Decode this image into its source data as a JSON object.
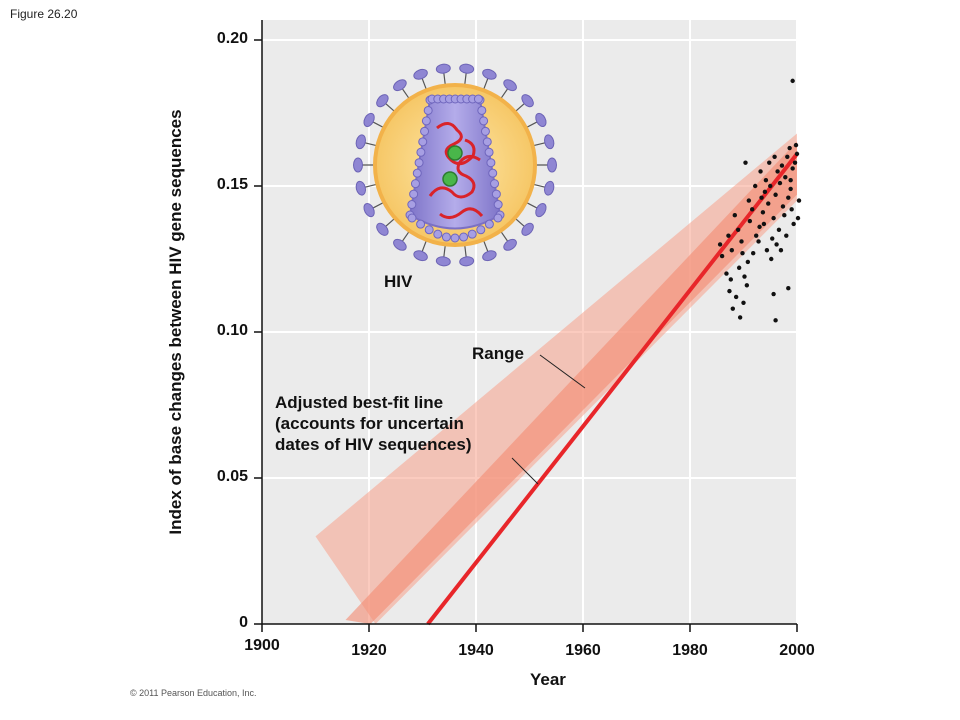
{
  "figure_label": "Figure 26.20",
  "copyright": "© 2011 Pearson Education, Inc.",
  "colors": {
    "plot_background": "#ebebeb",
    "best_fit_line": "#e8262a",
    "range_band": "#f7a08a",
    "points": "#111111",
    "virus_envelope": "#f6d27a",
    "virus_capsid": "#9b90d8",
    "virus_rna": "#d9232a",
    "virus_spikes": "#8f86d3"
  },
  "annotations": {
    "virus_label": "HIV",
    "range_label": "Range",
    "bestfit_line1": "Adjusted best-fit line",
    "bestfit_line2": "(accounts for uncertain",
    "bestfit_line3": "dates of HIV sequences)"
  },
  "chart_data": {
    "type": "scatter",
    "title": "",
    "xlabel": "Year",
    "ylabel": "Index of base changes between HIV gene sequences",
    "xlim": [
      1900,
      2000
    ],
    "ylim": [
      0,
      0.2
    ],
    "x_ticks": [
      "1900",
      "1920",
      "1940",
      "1960",
      "1980",
      "2000"
    ],
    "y_ticks": [
      "0",
      "0.05",
      "0.10",
      "0.15",
      "0.20"
    ],
    "grid": true,
    "best_fit_line": {
      "x": [
        1931,
        2000
      ],
      "y": [
        0,
        0.161
      ]
    },
    "range_band": {
      "x": [
        1910,
        2000
      ],
      "y_lower": [
        0,
        0.145
      ],
      "y_upper": [
        0.03,
        0.168
      ]
    },
    "points": [
      [
        1986,
        0.13
      ],
      [
        1986,
        0.126
      ],
      [
        1987,
        0.114
      ],
      [
        1987,
        0.12
      ],
      [
        1987,
        0.133
      ],
      [
        1988,
        0.118
      ],
      [
        1988,
        0.108
      ],
      [
        1988,
        0.14
      ],
      [
        1988,
        0.128
      ],
      [
        1989,
        0.122
      ],
      [
        1989,
        0.112
      ],
      [
        1989,
        0.135
      ],
      [
        1989,
        0.105
      ],
      [
        1990,
        0.127
      ],
      [
        1990,
        0.119
      ],
      [
        1990,
        0.131
      ],
      [
        1990,
        0.11
      ],
      [
        1990,
        0.158
      ],
      [
        1991,
        0.124
      ],
      [
        1991,
        0.138
      ],
      [
        1991,
        0.116
      ],
      [
        1991,
        0.145
      ],
      [
        1992,
        0.133
      ],
      [
        1992,
        0.127
      ],
      [
        1992,
        0.15
      ],
      [
        1992,
        0.142
      ],
      [
        1993,
        0.136
      ],
      [
        1993,
        0.146
      ],
      [
        1993,
        0.131
      ],
      [
        1993,
        0.155
      ],
      [
        1994,
        0.141
      ],
      [
        1994,
        0.148
      ],
      [
        1994,
        0.128
      ],
      [
        1994,
        0.137
      ],
      [
        1994,
        0.152
      ],
      [
        1995,
        0.144
      ],
      [
        1995,
        0.15
      ],
      [
        1995,
        0.132
      ],
      [
        1995,
        0.158
      ],
      [
        1995,
        0.125
      ],
      [
        1996,
        0.139
      ],
      [
        1996,
        0.147
      ],
      [
        1996,
        0.155
      ],
      [
        1996,
        0.16
      ],
      [
        1996,
        0.13
      ],
      [
        1996,
        0.113
      ],
      [
        1996,
        0.104
      ],
      [
        1997,
        0.143
      ],
      [
        1997,
        0.151
      ],
      [
        1997,
        0.157
      ],
      [
        1997,
        0.135
      ],
      [
        1997,
        0.128
      ],
      [
        1998,
        0.146
      ],
      [
        1998,
        0.153
      ],
      [
        1998,
        0.16
      ],
      [
        1998,
        0.14
      ],
      [
        1998,
        0.133
      ],
      [
        1998,
        0.115
      ],
      [
        1999,
        0.149
      ],
      [
        1999,
        0.156
      ],
      [
        1999,
        0.163
      ],
      [
        1999,
        0.142
      ],
      [
        1999,
        0.137
      ],
      [
        1999,
        0.152
      ],
      [
        1999,
        0.186
      ],
      [
        2000,
        0.158
      ],
      [
        2000,
        0.161
      ],
      [
        2000,
        0.145
      ],
      [
        2000,
        0.164
      ],
      [
        2000,
        0.139
      ]
    ]
  }
}
